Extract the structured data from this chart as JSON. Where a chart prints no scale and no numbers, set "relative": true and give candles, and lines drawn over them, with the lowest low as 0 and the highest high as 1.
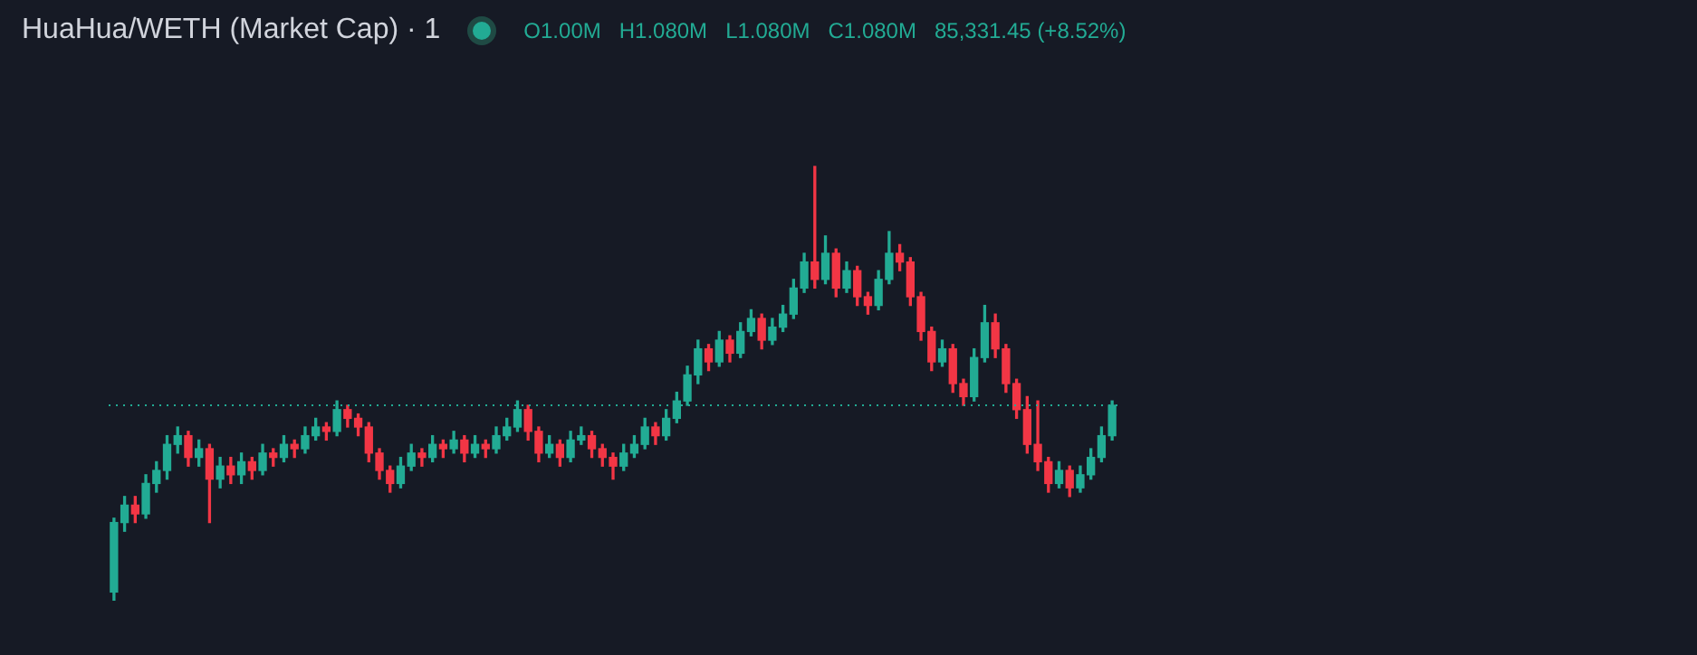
{
  "chart_data": {
    "type": "candlestick",
    "title": "HuaHua/WETH (Market Cap) · 1",
    "relative": true,
    "annotations": [
      "O1.00M",
      "H1.080M",
      "L1.080M",
      "C1.080M",
      "85,331.45 (+8.52%)"
    ],
    "categories": [
      null,
      null,
      null,
      null,
      null,
      null,
      null,
      null,
      null,
      null,
      null,
      null,
      null,
      null,
      null,
      null,
      null,
      null,
      null,
      null,
      null,
      null,
      null,
      null,
      null,
      null,
      null,
      null,
      null,
      null,
      null,
      null,
      null,
      null,
      null,
      null,
      null,
      null,
      null,
      null,
      null,
      null,
      null,
      null,
      null,
      null,
      null,
      null,
      null,
      null,
      null,
      null,
      null,
      null,
      null,
      null,
      null,
      null,
      null,
      null,
      null,
      null,
      null,
      null,
      null,
      null,
      null,
      null,
      null,
      null,
      null,
      null,
      null,
      null,
      null,
      null,
      null,
      null,
      null,
      null,
      null,
      null,
      null,
      null,
      null,
      null,
      null,
      null,
      null,
      null,
      null,
      null,
      null,
      null,
      null
    ],
    "ohlc": [
      [
        0.02,
        0.19,
        0,
        0.18
      ],
      [
        0.18,
        0.24,
        0.16,
        0.22
      ],
      [
        0.22,
        0.24,
        0.18,
        0.2
      ],
      [
        0.2,
        0.29,
        0.19,
        0.27
      ],
      [
        0.27,
        0.32,
        0.25,
        0.3
      ],
      [
        0.3,
        0.38,
        0.28,
        0.36
      ],
      [
        0.36,
        0.4,
        0.34,
        0.38
      ],
      [
        0.38,
        0.39,
        0.31,
        0.33
      ],
      [
        0.33,
        0.37,
        0.31,
        0.35
      ],
      [
        0.35,
        0.36,
        0.18,
        0.28
      ],
      [
        0.28,
        0.33,
        0.26,
        0.31
      ],
      [
        0.31,
        0.33,
        0.27,
        0.29
      ],
      [
        0.29,
        0.34,
        0.27,
        0.32
      ],
      [
        0.32,
        0.33,
        0.28,
        0.3
      ],
      [
        0.3,
        0.36,
        0.29,
        0.34
      ],
      [
        0.34,
        0.35,
        0.31,
        0.33
      ],
      [
        0.33,
        0.38,
        0.32,
        0.36
      ],
      [
        0.36,
        0.37,
        0.33,
        0.35
      ],
      [
        0.35,
        0.4,
        0.34,
        0.38
      ],
      [
        0.38,
        0.42,
        0.37,
        0.4
      ],
      [
        0.4,
        0.41,
        0.37,
        0.39
      ],
      [
        0.39,
        0.46,
        0.38,
        0.44
      ],
      [
        0.44,
        0.45,
        0.4,
        0.42
      ],
      [
        0.42,
        0.43,
        0.38,
        0.4
      ],
      [
        0.4,
        0.41,
        0.32,
        0.34
      ],
      [
        0.34,
        0.35,
        0.28,
        0.3
      ],
      [
        0.3,
        0.31,
        0.25,
        0.27
      ],
      [
        0.27,
        0.33,
        0.26,
        0.31
      ],
      [
        0.31,
        0.36,
        0.3,
        0.34
      ],
      [
        0.34,
        0.35,
        0.31,
        0.33
      ],
      [
        0.33,
        0.38,
        0.32,
        0.36
      ],
      [
        0.36,
        0.37,
        0.33,
        0.35
      ],
      [
        0.35,
        0.39,
        0.34,
        0.37
      ],
      [
        0.37,
        0.38,
        0.32,
        0.34
      ],
      [
        0.34,
        0.38,
        0.33,
        0.36
      ],
      [
        0.36,
        0.37,
        0.33,
        0.35
      ],
      [
        0.35,
        0.4,
        0.34,
        0.38
      ],
      [
        0.38,
        0.42,
        0.37,
        0.4
      ],
      [
        0.4,
        0.46,
        0.39,
        0.44
      ],
      [
        0.44,
        0.45,
        0.37,
        0.39
      ],
      [
        0.39,
        0.4,
        0.32,
        0.34
      ],
      [
        0.34,
        0.38,
        0.33,
        0.36
      ],
      [
        0.36,
        0.37,
        0.31,
        0.33
      ],
      [
        0.33,
        0.39,
        0.32,
        0.37
      ],
      [
        0.37,
        0.4,
        0.36,
        0.38
      ],
      [
        0.38,
        0.39,
        0.33,
        0.35
      ],
      [
        0.35,
        0.36,
        0.31,
        0.33
      ],
      [
        0.33,
        0.34,
        0.28,
        0.31
      ],
      [
        0.31,
        0.36,
        0.3,
        0.34
      ],
      [
        0.34,
        0.38,
        0.33,
        0.36
      ],
      [
        0.36,
        0.42,
        0.35,
        0.4
      ],
      [
        0.4,
        0.41,
        0.36,
        0.38
      ],
      [
        0.38,
        0.44,
        0.37,
        0.42
      ],
      [
        0.42,
        0.48,
        0.41,
        0.46
      ],
      [
        0.46,
        0.54,
        0.45,
        0.52
      ],
      [
        0.52,
        0.6,
        0.5,
        0.58
      ],
      [
        0.58,
        0.59,
        0.53,
        0.55
      ],
      [
        0.55,
        0.62,
        0.54,
        0.6
      ],
      [
        0.6,
        0.61,
        0.55,
        0.57
      ],
      [
        0.57,
        0.64,
        0.56,
        0.62
      ],
      [
        0.62,
        0.67,
        0.61,
        0.65
      ],
      [
        0.65,
        0.66,
        0.58,
        0.6
      ],
      [
        0.6,
        0.65,
        0.59,
        0.63
      ],
      [
        0.63,
        0.68,
        0.62,
        0.66
      ],
      [
        0.66,
        0.74,
        0.65,
        0.72
      ],
      [
        0.72,
        0.8,
        0.71,
        0.78
      ],
      [
        0.78,
        1,
        0.72,
        0.74
      ],
      [
        0.74,
        0.84,
        0.73,
        0.8
      ],
      [
        0.8,
        0.81,
        0.7,
        0.72
      ],
      [
        0.72,
        0.78,
        0.71,
        0.76
      ],
      [
        0.76,
        0.77,
        0.68,
        0.7
      ],
      [
        0.7,
        0.71,
        0.66,
        0.68
      ],
      [
        0.68,
        0.76,
        0.67,
        0.74
      ],
      [
        0.74,
        0.85,
        0.73,
        0.8
      ],
      [
        0.8,
        0.82,
        0.76,
        0.78
      ],
      [
        0.78,
        0.79,
        0.68,
        0.7
      ],
      [
        0.7,
        0.71,
        0.6,
        0.62
      ],
      [
        0.62,
        0.63,
        0.53,
        0.55
      ],
      [
        0.55,
        0.6,
        0.54,
        0.58
      ],
      [
        0.58,
        0.59,
        0.48,
        0.5
      ],
      [
        0.5,
        0.51,
        0.45,
        0.47
      ],
      [
        0.47,
        0.58,
        0.46,
        0.56
      ],
      [
        0.56,
        0.68,
        0.55,
        0.64
      ],
      [
        0.64,
        0.66,
        0.56,
        0.58
      ],
      [
        0.58,
        0.59,
        0.48,
        0.5
      ],
      [
        0.5,
        0.51,
        0.42,
        0.44
      ],
      [
        0.44,
        0.47,
        0.34,
        0.36
      ],
      [
        0.36,
        0.46,
        0.3,
        0.32
      ],
      [
        0.32,
        0.33,
        0.25,
        0.27
      ],
      [
        0.27,
        0.32,
        0.26,
        0.3
      ],
      [
        0.3,
        0.31,
        0.24,
        0.26
      ],
      [
        0.26,
        0.31,
        0.25,
        0.29
      ],
      [
        0.29,
        0.35,
        0.28,
        0.33
      ],
      [
        0.33,
        0.4,
        0.32,
        0.38
      ],
      [
        0.38,
        0.46,
        0.37,
        0.45
      ]
    ],
    "colors": [
      "#22ab94",
      "#22ab94",
      "#f23645",
      "#22ab94",
      "#22ab94",
      "#22ab94",
      "#22ab94",
      "#f23645",
      "#22ab94",
      "#f23645",
      "#22ab94",
      "#f23645",
      "#22ab94",
      "#f23645",
      "#22ab94",
      "#f23645",
      "#22ab94",
      "#f23645",
      "#22ab94",
      "#22ab94",
      "#f23645",
      "#22ab94",
      "#f23645",
      "#f23645",
      "#f23645",
      "#f23645",
      "#f23645",
      "#22ab94",
      "#22ab94",
      "#f23645",
      "#22ab94",
      "#f23645",
      "#22ab94",
      "#f23645",
      "#22ab94",
      "#f23645",
      "#22ab94",
      "#22ab94",
      "#22ab94",
      "#f23645",
      "#f23645",
      "#22ab94",
      "#f23645",
      "#22ab94",
      "#22ab94",
      "#f23645",
      "#f23645",
      "#f23645",
      "#22ab94",
      "#22ab94",
      "#22ab94",
      "#f23645",
      "#22ab94",
      "#22ab94",
      "#22ab94",
      "#22ab94",
      "#f23645",
      "#22ab94",
      "#f23645",
      "#22ab94",
      "#22ab94",
      "#f23645",
      "#22ab94",
      "#22ab94",
      "#22ab94",
      "#22ab94",
      "#f23645",
      "#22ab94",
      "#f23645",
      "#22ab94",
      "#f23645",
      "#f23645",
      "#22ab94",
      "#22ab94",
      "#f23645",
      "#f23645",
      "#f23645",
      "#f23645",
      "#22ab94",
      "#f23645",
      "#f23645",
      "#22ab94",
      "#22ab94",
      "#f23645",
      "#f23645",
      "#f23645",
      "#f23645",
      "#f23645",
      "#f23645",
      "#22ab94",
      "#f23645",
      "#22ab94",
      "#22ab94",
      "#22ab94",
      "#22ab94"
    ],
    "ref_lines": [
      {
        "axis": "y",
        "value": 0.45,
        "color": "#22ab94",
        "line_style": "dotted"
      }
    ]
  }
}
